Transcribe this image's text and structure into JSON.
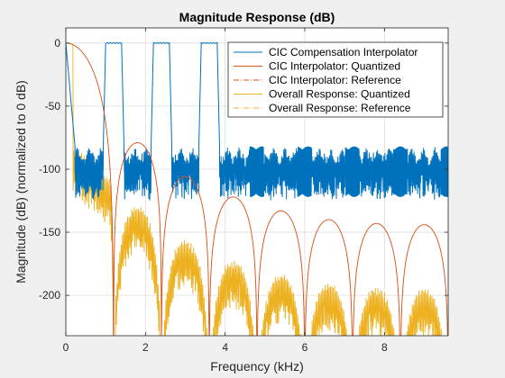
{
  "chart_data": {
    "type": "line",
    "title": "Magnitude Response (dB)",
    "xlabel": "Frequency (kHz)",
    "ylabel": "Magnitude (dB) (normalized to 0 dB)",
    "xlim": [
      0,
      9.6
    ],
    "ylim": [
      -232,
      12
    ],
    "xticks": [
      0,
      2,
      4,
      6,
      8
    ],
    "yticks": [
      0,
      -50,
      -100,
      -150,
      -200
    ],
    "grid": true,
    "legend_position": "top-right",
    "series": [
      {
        "name": "CIC Compensation Interpolator",
        "color": "#0072bd",
        "style": "solid",
        "passband_centers_khz": [
          1.2,
          2.4,
          3.6
        ],
        "passband_level_db": 0,
        "stopband_start_khz": 0.2,
        "stopband_floor_db": -82,
        "stopband_ripple_min_db": -125
      },
      {
        "name": "CIC Interpolator: Quantized",
        "color": "#d95319",
        "style": "solid",
        "main_lobe_khz": [
          0,
          1.2
        ],
        "lobes": [
          {
            "center_khz": 1.8,
            "peak_db": -79
          },
          {
            "center_khz": 3.0,
            "peak_db": -106
          },
          {
            "center_khz": 4.2,
            "peak_db": -122
          },
          {
            "center_khz": 5.4,
            "peak_db": -133
          },
          {
            "center_khz": 6.6,
            "peak_db": -140
          },
          {
            "center_khz": 7.8,
            "peak_db": -143
          },
          {
            "center_khz": 9.0,
            "peak_db": -144
          }
        ]
      },
      {
        "name": "CIC Interpolator: Reference",
        "color": "#d95319",
        "style": "dashdot"
      },
      {
        "name": "Overall Response: Quantized",
        "color": "#edb120",
        "style": "solid"
      },
      {
        "name": "Overall Response: Reference",
        "color": "#edb120",
        "style": "dashdot"
      }
    ]
  }
}
